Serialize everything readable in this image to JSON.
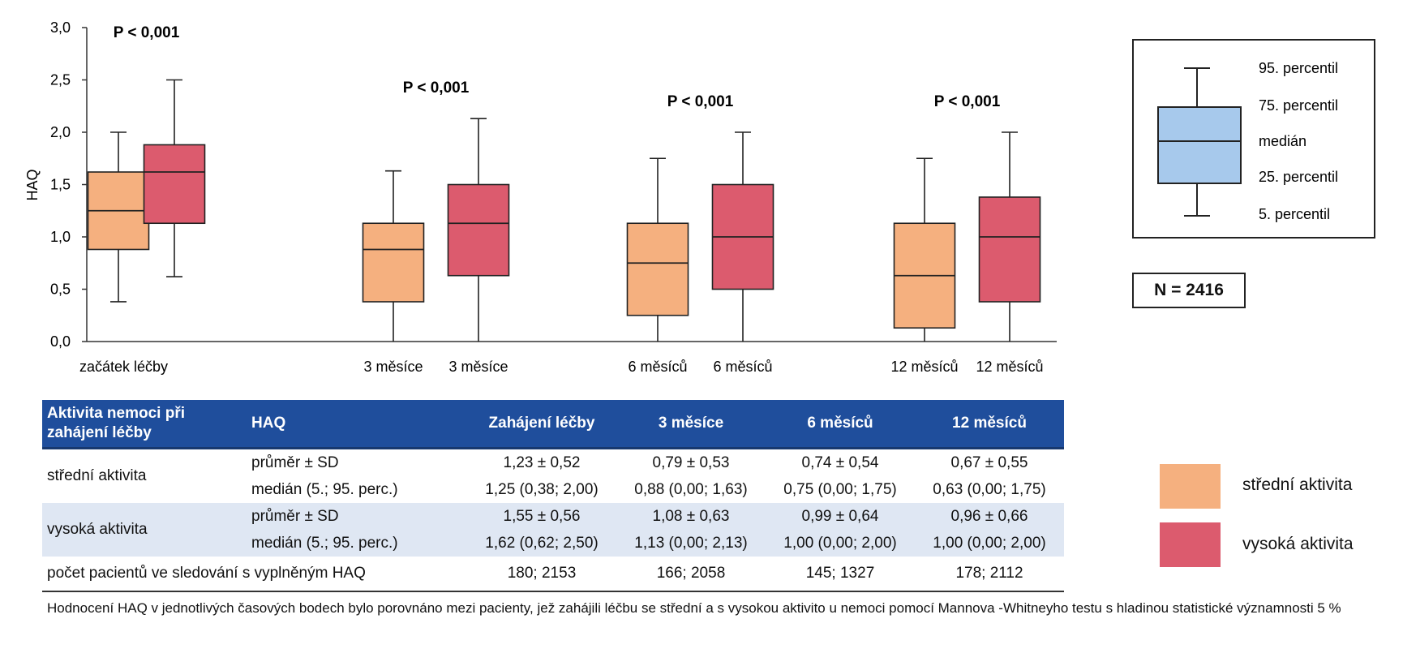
{
  "chart_data": {
    "type": "boxplot",
    "ylabel": "HAQ",
    "ylim": [
      0,
      3
    ],
    "yticks": [
      "0,0",
      "0,5",
      "1,0",
      "1,5",
      "2,0",
      "2,5",
      "3,0"
    ],
    "ytick_values": [
      0,
      0.5,
      1,
      1.5,
      2,
      2.5,
      3
    ],
    "groups": [
      {
        "pvalue": "P < 0,001",
        "boxes": [
          {
            "series": "střední aktivita",
            "label": "začátek léčby",
            "p5": 0.38,
            "q1": 0.88,
            "median": 1.25,
            "q3": 1.62,
            "p95": 2.0
          },
          {
            "series": "vysoká aktivita",
            "label": "",
            "p5": 0.62,
            "q1": 1.13,
            "median": 1.62,
            "q3": 1.88,
            "p95": 2.5
          }
        ]
      },
      {
        "pvalue": "P < 0,001",
        "boxes": [
          {
            "series": "střední aktivita",
            "label": "3 měsíce",
            "p5": 0.0,
            "q1": 0.38,
            "median": 0.88,
            "q3": 1.13,
            "p95": 1.63
          },
          {
            "series": "vysoká aktivita",
            "label": "3 měsíce",
            "p5": 0.0,
            "q1": 0.63,
            "median": 1.13,
            "q3": 1.5,
            "p95": 2.13
          }
        ]
      },
      {
        "pvalue": "P < 0,001",
        "boxes": [
          {
            "series": "střední aktivita",
            "label": "6 měsíců",
            "p5": 0.0,
            "q1": 0.25,
            "median": 0.75,
            "q3": 1.13,
            "p95": 1.75
          },
          {
            "series": "vysoká aktivita",
            "label": "6 měsíců",
            "p5": 0.0,
            "q1": 0.5,
            "median": 1.0,
            "q3": 1.5,
            "p95": 2.0
          }
        ]
      },
      {
        "pvalue": "P < 0,001",
        "boxes": [
          {
            "series": "střední aktivita",
            "label": "12 měsíců",
            "p5": 0.0,
            "q1": 0.13,
            "median": 0.63,
            "q3": 1.13,
            "p95": 1.75
          },
          {
            "series": "vysoká aktivita",
            "label": "12 měsíců",
            "p5": 0.0,
            "q1": 0.38,
            "median": 1.0,
            "q3": 1.38,
            "p95": 2.0
          }
        ]
      }
    ],
    "series": [
      {
        "name": "střední aktivita",
        "color": "#f5b07f"
      },
      {
        "name": "vysoká aktivita",
        "color": "#dc5b6e"
      }
    ],
    "key_legend": {
      "color": "#a7c9ec",
      "labels": [
        "95. percentil",
        "75. percentil",
        "medián",
        "25. percentil",
        "5. percentil"
      ]
    },
    "n_label": "N = 2416"
  },
  "table": {
    "headers": [
      "Aktivita nemoci při zahájení léčby",
      "HAQ",
      "Zahájení léčby",
      "3 měsíce",
      "6 měsíců",
      "12 měsíců"
    ],
    "groups": [
      {
        "name": "střední aktivita",
        "rows": [
          {
            "stat": "průměr ± SD",
            "values": [
              "1,23 ± 0,52",
              "0,79 ± 0,53",
              "0,74 ± 0,54",
              "0,67 ± 0,55"
            ]
          },
          {
            "stat": "medián (5.; 95. perc.)",
            "values": [
              "1,25 (0,38; 2,00)",
              "0,88 (0,00; 1,63)",
              "0,75 (0,00; 1,75)",
              "0,63 (0,00; 1,75)"
            ]
          }
        ]
      },
      {
        "name": "vysoká aktivita",
        "rows": [
          {
            "stat": "průměr ± SD",
            "values": [
              "1,55 ± 0,56",
              "1,08 ± 0,63",
              "0,99 ± 0,64",
              "0,96 ± 0,66"
            ]
          },
          {
            "stat": "medián (5.; 95. perc.)",
            "values": [
              "1,62 (0,62; 2,50)",
              "1,13 (0,00; 2,13)",
              "1,00 (0,00; 2,00)",
              "1,00 (0,00; 2,00)"
            ]
          }
        ]
      }
    ],
    "count_row": {
      "label": "počet pacientů ve sledování s vyplněným HAQ",
      "values": [
        "180; 2153",
        "166; 2058",
        "145; 1327",
        "178; 2112"
      ]
    }
  },
  "footnote": "Hodnocení HAQ v jednotlivých časových bodech bylo porovnáno mezi pacienty, jež zahájili léčbu se střední a s vysokou aktivito u nemoci pomocí Mannova -Whitneyho testu s hladinou statistické významnosti 5 %"
}
